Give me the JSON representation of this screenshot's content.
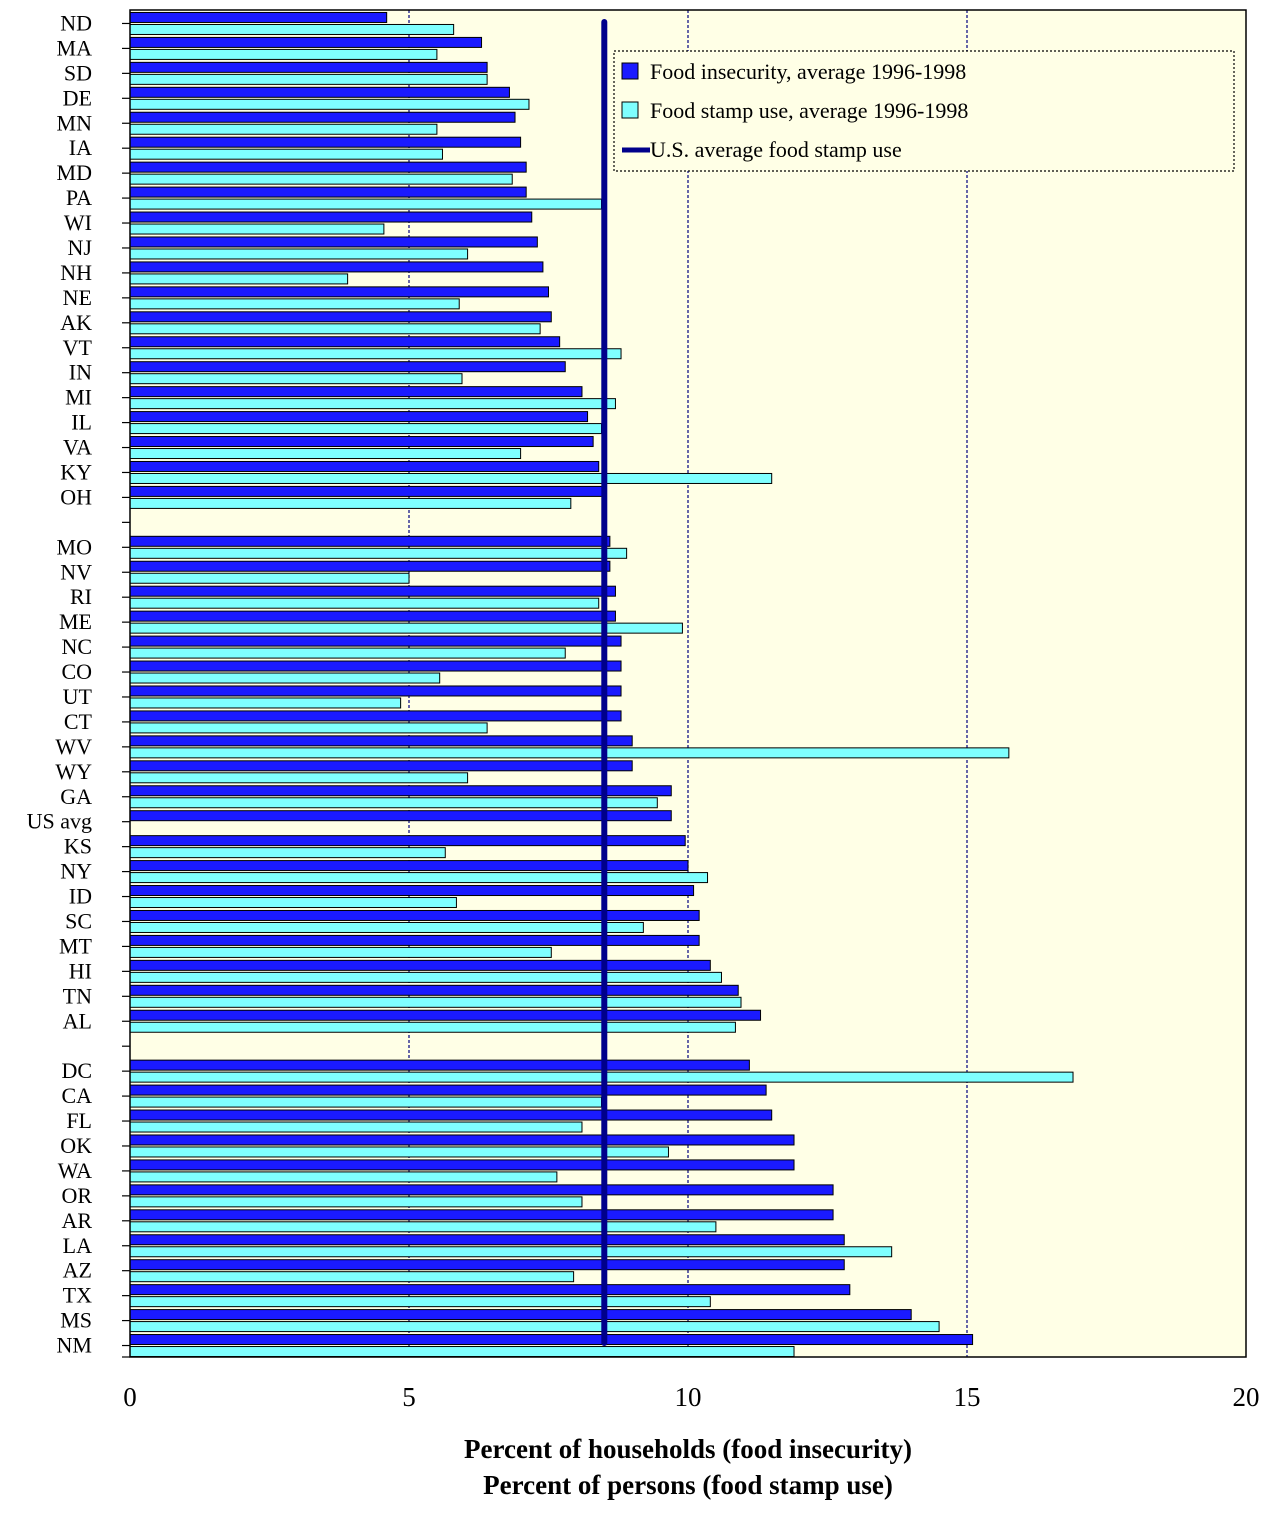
{
  "chart_data": {
    "type": "bar",
    "orientation": "horizontal",
    "categories": [
      "ND",
      "MA",
      "SD",
      "DE",
      "MN",
      "IA",
      "MD",
      "PA",
      "WI",
      "NJ",
      "NH",
      "NE",
      "AK",
      "VT",
      "IN",
      "MI",
      "IL",
      "VA",
      "KY",
      "OH",
      "",
      "MO",
      "NV",
      "RI",
      "ME",
      "NC",
      "CO",
      "UT",
      "CT",
      "WV",
      "WY",
      "GA",
      "US avg",
      "KS",
      "NY",
      "ID",
      "SC",
      "MT",
      "HI",
      "TN",
      "AL",
      "",
      "DC",
      "CA",
      "FL",
      "OK",
      "WA",
      "OR",
      "AR",
      "LA",
      "AZ",
      "TX",
      "MS",
      "NM"
    ],
    "series": [
      {
        "name": "Food insecurity, average 1996-1998",
        "color": "#1a1aff",
        "values": [
          4.6,
          6.3,
          6.4,
          6.8,
          6.9,
          7.0,
          7.1,
          7.1,
          7.2,
          7.3,
          7.4,
          7.5,
          7.55,
          7.7,
          7.8,
          8.1,
          8.2,
          8.3,
          8.4,
          8.5,
          null,
          8.6,
          8.6,
          8.7,
          8.7,
          8.8,
          8.8,
          8.8,
          8.8,
          9.0,
          9.0,
          9.7,
          9.7,
          9.95,
          10.0,
          10.1,
          10.2,
          10.2,
          10.4,
          10.9,
          11.3,
          null,
          11.1,
          11.4,
          11.5,
          11.9,
          11.9,
          12.6,
          12.6,
          12.8,
          12.8,
          12.9,
          14.0,
          15.1
        ]
      },
      {
        "name": "Food stamp use, average 1996-1998",
        "color": "#7fffff",
        "values": [
          5.8,
          5.5,
          6.4,
          7.15,
          5.5,
          5.6,
          6.85,
          8.45,
          4.55,
          6.05,
          3.9,
          5.9,
          7.35,
          8.8,
          5.95,
          8.7,
          8.45,
          7.0,
          11.5,
          7.9,
          null,
          8.9,
          5.0,
          8.4,
          9.9,
          7.8,
          5.55,
          4.85,
          6.4,
          15.75,
          6.05,
          9.45,
          null,
          5.65,
          10.35,
          5.85,
          9.2,
          7.55,
          10.6,
          10.95,
          10.85,
          null,
          16.9,
          8.45,
          8.1,
          9.65,
          7.65,
          8.1,
          10.5,
          13.65,
          7.95,
          10.4,
          14.5,
          11.9
        ]
      }
    ],
    "reference_line": {
      "name": "U.S. average food stamp use",
      "value": 8.5,
      "color": "#00008b"
    },
    "xlim": [
      0,
      20
    ],
    "xticks": [
      0,
      5,
      10,
      15,
      20
    ],
    "grid": "vertical dashed",
    "plot_bg": "#ffffe6",
    "legend_position": "top-right",
    "xlabel": "Percent of households (food insecurity)",
    "xlabel2": "Percent of persons (food stamp use)",
    "title": ""
  }
}
